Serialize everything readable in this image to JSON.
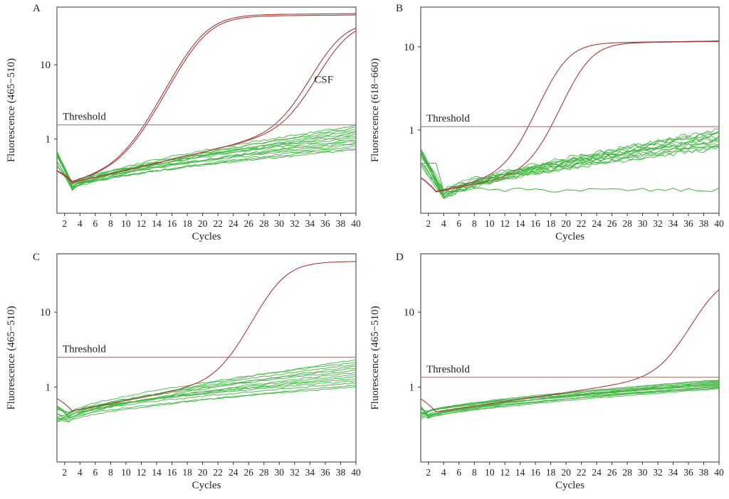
{
  "colors": {
    "negative": "#3fb53f",
    "positive": "#a93a3a",
    "threshold": "#9a6a62",
    "frame": "#333333"
  },
  "chart_data": [
    {
      "panel": "A",
      "type": "line",
      "yscale": "log",
      "xlabel": "Cycles",
      "ylabel": "Fluorescence (465−510)",
      "xlim": [
        1,
        40
      ],
      "ylim": [
        0.1,
        60
      ],
      "xticks": [
        2,
        4,
        6,
        8,
        10,
        12,
        14,
        16,
        18,
        20,
        22,
        24,
        26,
        28,
        30,
        32,
        34,
        36,
        38,
        40
      ],
      "yticks": [
        {
          "value": 1,
          "label": "1"
        },
        {
          "value": 10,
          "label": "10"
        }
      ],
      "threshold": {
        "label": "Threshold",
        "value": 1.55
      },
      "annotations": [
        {
          "text": "CSF",
          "x": 35.8,
          "y": 6.4
        }
      ],
      "positive": [
        {
          "ct": 16.3,
          "plateau": 47,
          "base": 0.22,
          "rate": 0.055,
          "steep": 0.5
        },
        {
          "ct": 16.5,
          "plateau": 45,
          "base": 0.22,
          "rate": 0.055,
          "steep": 0.5
        },
        {
          "ct": 33.8,
          "plateau": 36,
          "base": 0.22,
          "rate": 0.055,
          "steep": 0.55
        },
        {
          "ct": 34.6,
          "plateau": 36,
          "base": 0.22,
          "rate": 0.055,
          "steep": 0.55
        }
      ],
      "negative": {
        "count": 15,
        "start": 0.55,
        "dip": 0.24,
        "dip_cycle": 3,
        "end_min": 0.72,
        "end_max": 1.5,
        "flat": [],
        "noise": 0.03
      }
    },
    {
      "panel": "B",
      "type": "line",
      "yscale": "log",
      "xlabel": "Cycles",
      "ylabel": "Fluorescence (618−660)",
      "xlim": [
        1,
        40
      ],
      "ylim": [
        0.1,
        30
      ],
      "xticks": [
        2,
        4,
        6,
        8,
        10,
        12,
        14,
        16,
        18,
        20,
        22,
        24,
        26,
        28,
        30,
        32,
        34,
        36,
        38,
        40
      ],
      "yticks": [
        {
          "value": 1,
          "label": "1"
        },
        {
          "value": 10,
          "label": "10"
        }
      ],
      "threshold": {
        "label": "Threshold",
        "value": 1.1
      },
      "annotations": [],
      "positive": [
        {
          "ct": 15.8,
          "plateau": 10.8,
          "base": 0.16,
          "rate": 0.045,
          "steep": 0.6
        },
        {
          "ct": 18.8,
          "plateau": 10.8,
          "base": 0.16,
          "rate": 0.04,
          "steep": 0.6
        }
      ],
      "negative": {
        "count": 14,
        "start": 0.5,
        "dip": 0.17,
        "dip_cycle": 4,
        "end_min": 0.6,
        "end_max": 1.0,
        "flat": [
          0.19
        ],
        "noise": 0.06
      }
    },
    {
      "panel": "C",
      "type": "line",
      "yscale": "log",
      "xlabel": "Cycles",
      "ylabel": "Fluorescence (465−510)",
      "xlim": [
        1,
        40
      ],
      "ylim": [
        0.1,
        60
      ],
      "xticks": [
        2,
        4,
        6,
        8,
        10,
        12,
        14,
        16,
        18,
        20,
        22,
        24,
        26,
        28,
        30,
        32,
        34,
        36,
        38,
        40
      ],
      "yticks": [
        {
          "value": 1,
          "label": "1"
        },
        {
          "value": 10,
          "label": "10"
        }
      ],
      "threshold": {
        "label": "Threshold",
        "value": 2.5
      },
      "annotations": [],
      "positive": [
        {
          "ct": 26.3,
          "plateau": 45,
          "base": 0.42,
          "rate": 0.045,
          "steep": 0.55
        }
      ],
      "negative": {
        "count": 14,
        "start": 0.45,
        "dip": 0.4,
        "dip_cycle": 2.5,
        "end_min": 1.0,
        "end_max": 2.3,
        "flat": [],
        "noise": 0.02
      }
    },
    {
      "panel": "D",
      "type": "line",
      "yscale": "log",
      "xlabel": "Cycles",
      "ylabel": "Fluorescence (465−510)",
      "xlim": [
        1,
        40
      ],
      "ylim": [
        0.1,
        60
      ],
      "xticks": [
        2,
        4,
        6,
        8,
        10,
        12,
        14,
        16,
        18,
        20,
        22,
        24,
        26,
        28,
        30,
        32,
        34,
        36,
        38,
        40
      ],
      "yticks": [
        {
          "value": 1,
          "label": "1"
        },
        {
          "value": 10,
          "label": "10"
        }
      ],
      "threshold": {
        "label": "Threshold",
        "value": 1.35
      },
      "annotations": [],
      "positive": [
        {
          "ct": 35.7,
          "plateau": 30,
          "base": 0.42,
          "rate": 0.035,
          "steep": 0.55
        }
      ],
      "negative": {
        "count": 14,
        "start": 0.45,
        "dip": 0.43,
        "dip_cycle": 2,
        "end_min": 0.95,
        "end_max": 1.25,
        "flat": [],
        "noise": 0.01
      }
    }
  ]
}
